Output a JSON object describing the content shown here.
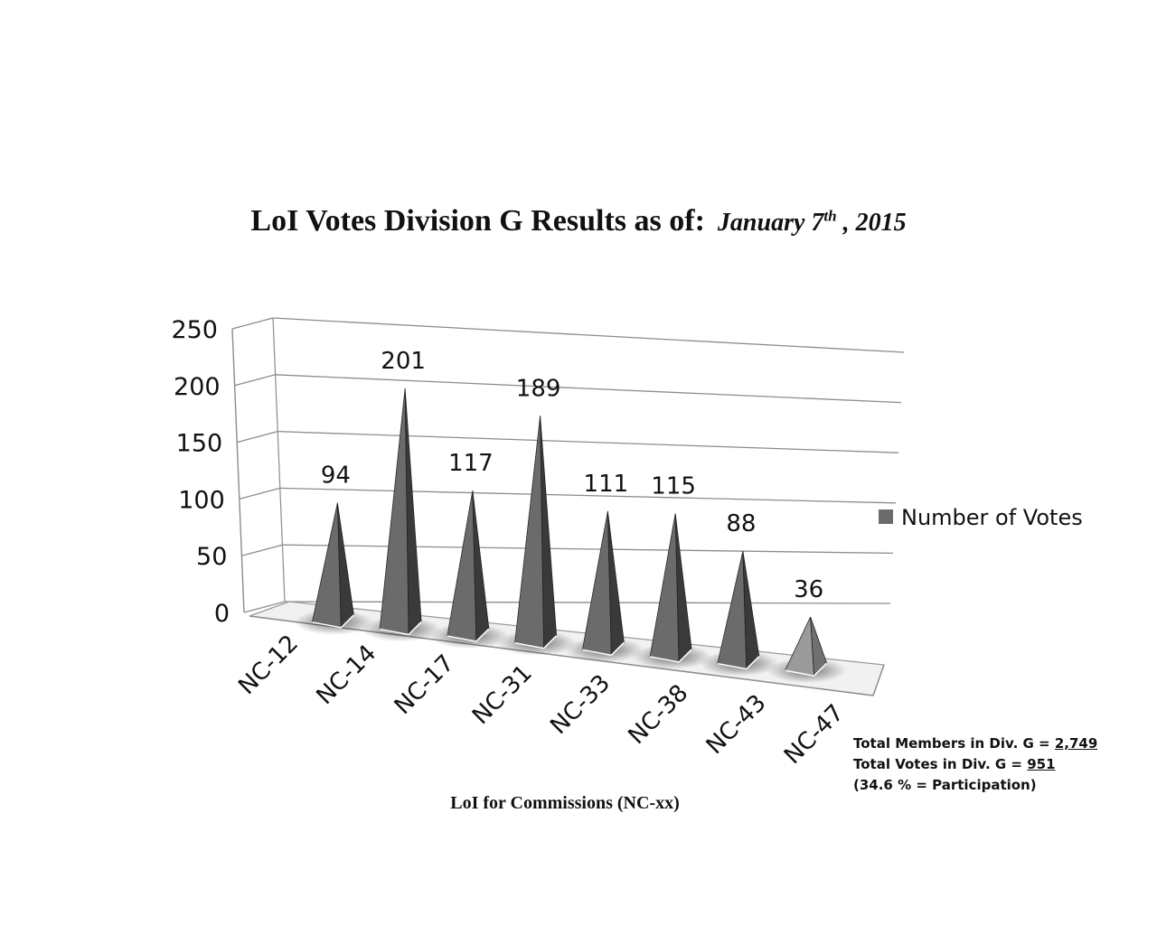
{
  "title": {
    "main": "LoI Votes Division G Results as of:",
    "date_prefix": "January 7",
    "date_sup": "th",
    "date_suffix": " , 2015"
  },
  "stats": {
    "members_label": "Total Members in Div. G = ",
    "members_value": "2,749",
    "votes_label": "Total Votes in Div. G = ",
    "votes_value": "951",
    "participation": "(34.6 % = Participation)"
  },
  "chart_data": {
    "type": "bar",
    "style": "3d-pyramid",
    "categories": [
      "NC-12",
      "NC-14",
      "NC-17",
      "NC-31",
      "NC-33",
      "NC-38",
      "NC-43",
      "NC-47"
    ],
    "series": [
      {
        "name": "Number of Votes",
        "values": [
          94,
          201,
          117,
          189,
          111,
          115,
          88,
          36
        ]
      }
    ],
    "data_labels": [
      "94",
      "201",
      "117",
      "189",
      "111",
      "115",
      "88",
      "36"
    ],
    "y_ticks": [
      "0",
      "50",
      "100",
      "150",
      "200",
      "250"
    ],
    "ylim": [
      0,
      250
    ],
    "xlabel": "LoI for Commissions (NC-xx)",
    "ylabel": "",
    "grid": true,
    "legend_position": "right",
    "colors": {
      "pyramid_front": "#6b6b6b",
      "pyramid_side": "#3a3a3a",
      "last_front": "#9a9a9a",
      "last_side": "#707070",
      "grid": "#8c8c8c"
    }
  }
}
